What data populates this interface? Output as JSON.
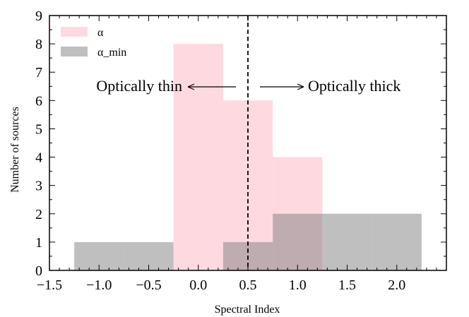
{
  "chart_data": {
    "type": "bar",
    "subtype": "overlapping-histogram",
    "xlabel": "Spectral Index",
    "ylabel": "Number of sources",
    "xlim": [
      -1.5,
      2.5
    ],
    "ylim": [
      0,
      9
    ],
    "xticks": [
      -1.5,
      -1.0,
      -0.5,
      0.0,
      0.5,
      1.0,
      1.5,
      2.0
    ],
    "xtick_labels": [
      "−1.5",
      "−1.0",
      "−0.5",
      "0.0",
      "0.5",
      "1.0",
      "1.5",
      "2.0"
    ],
    "yticks": [
      0,
      1,
      2,
      3,
      4,
      5,
      6,
      7,
      8,
      9
    ],
    "ytick_labels": [
      "0",
      "1",
      "2",
      "3",
      "4",
      "5",
      "6",
      "7",
      "8",
      "9"
    ],
    "grid": false,
    "legend_position": "top-left",
    "series": [
      {
        "name": "α",
        "color": "#ffc0cb",
        "opacity": 0.6,
        "bin_edges": [
          -0.25,
          0.25,
          0.75,
          1.25
        ],
        "counts": [
          8,
          6,
          4
        ]
      },
      {
        "name": "α_min",
        "color": "#808080",
        "opacity": 0.5,
        "bin_edges": [
          -1.25,
          -0.75,
          -0.25,
          0.25,
          0.75,
          1.25,
          1.75,
          2.25
        ],
        "counts": [
          1,
          1,
          0,
          1,
          2,
          2,
          2
        ]
      }
    ],
    "vline": {
      "x": 0.5,
      "style": "dashed",
      "color": "#000000"
    },
    "annotations": [
      {
        "text": "Optically thin",
        "direction": "left"
      },
      {
        "text": "Optically thick",
        "direction": "right"
      }
    ]
  }
}
